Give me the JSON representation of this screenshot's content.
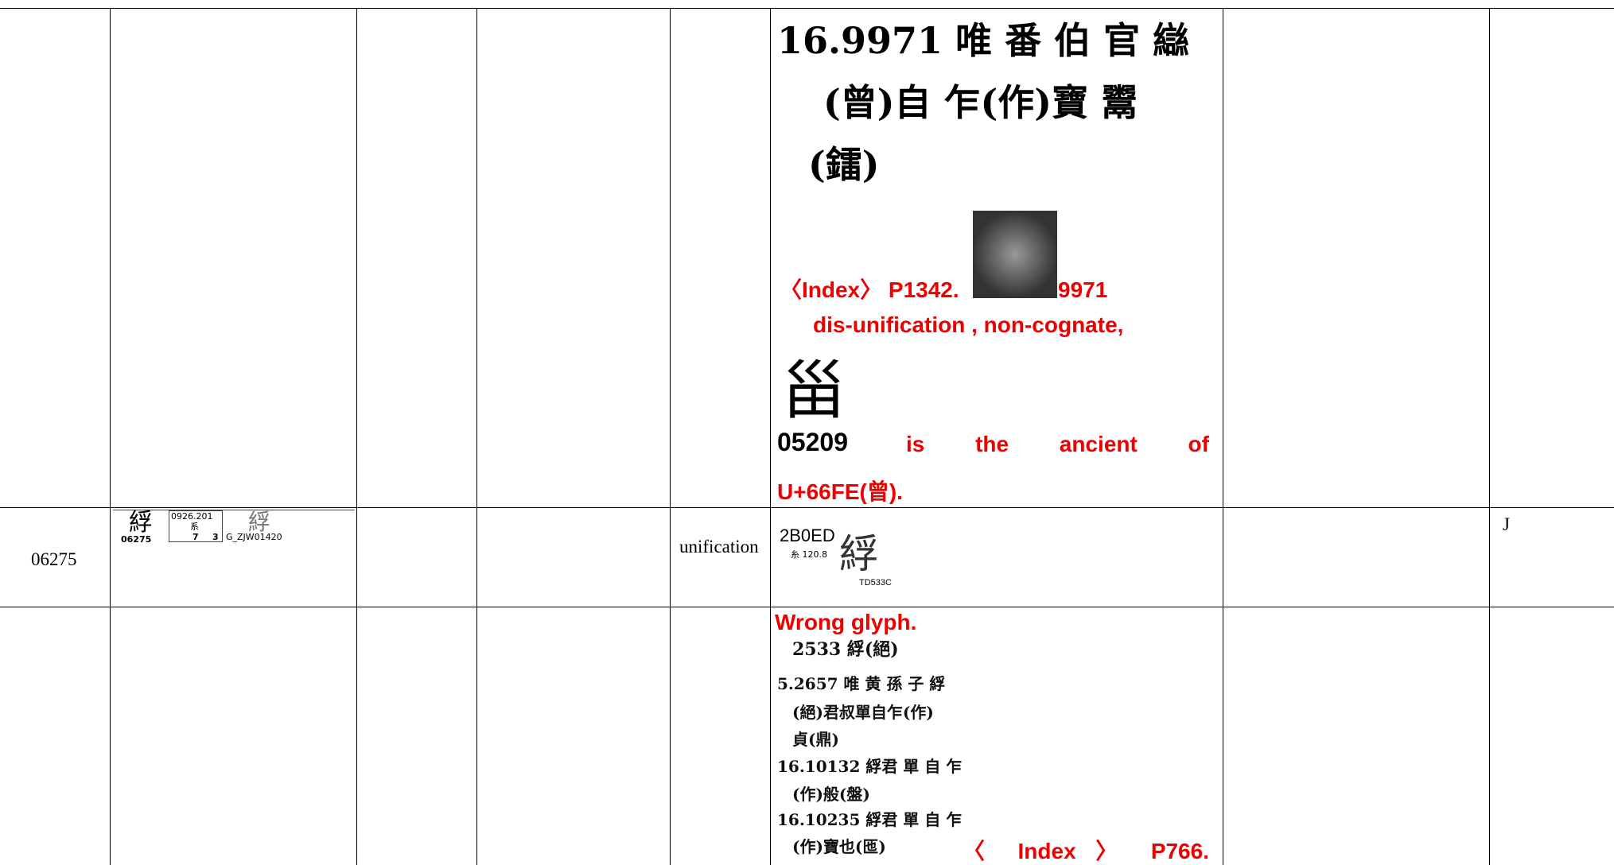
{
  "table": {
    "rows": [
      {
        "evidence": [
          "16.9971 唯 番 伯 官 䜌",
          "(曾)自 乍(作)寶 鬻",
          "(鐳)",
          "〈Index〉 P1342.",
          "9971",
          "dis-unification , non-cognate,",
          "甾",
          "05209",
          "is the ancient of",
          "U+66FE(曾)."
        ]
      },
      {
        "id": "06275",
        "glyph_card": {
          "glyph": "綒",
          "code": "0926.201",
          "radical": "系",
          "serial": "06275",
          "strokes": "7",
          "sub": "3",
          "source_glyph": "綒",
          "source": "G_ZJW01420"
        },
        "status": "unification",
        "evidence": {
          "code": "2B0ED",
          "radical": "糸 120.8",
          "glyph": "綒",
          "source": "TD533C"
        },
        "note": "J"
      },
      {
        "evidence": [
          "Wrong glyph.",
          "2533 綒(絕)",
          "5.2657 唯 黄 孫 子 綒",
          "(絕)君叔單自乍(作)",
          "貞(鼎)",
          "16.10132 綒君 單 自 乍",
          "(作)般(盤)",
          "16.10235 綒君 單 自 乍",
          "(作)寶也(匜)",
          "〈 Index 〉 P766."
        ]
      }
    ]
  }
}
